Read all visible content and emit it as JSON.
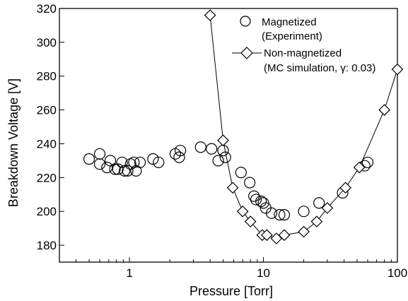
{
  "chart_data": {
    "type": "scatter",
    "title": "",
    "xlabel": "Pressure [Torr]",
    "ylabel": "Breakdown Voltage [V]",
    "x_scale": "log",
    "xlim": [
      0.3,
      100
    ],
    "ylim": [
      170,
      320
    ],
    "x_ticks": [
      {
        "value": 1,
        "label": "1"
      },
      {
        "value": 10,
        "label": "10"
      },
      {
        "value": 100,
        "label": "100"
      }
    ],
    "y_ticks": [
      180,
      200,
      220,
      240,
      260,
      280,
      300,
      320
    ],
    "grid": false,
    "legend_position": "top-right",
    "series": [
      {
        "name": "Magnetized",
        "name_note": "(Experiment)",
        "marker": "circle",
        "line": false,
        "points": [
          [
            0.5,
            231
          ],
          [
            0.6,
            234
          ],
          [
            0.6,
            228
          ],
          [
            0.68,
            226
          ],
          [
            0.72,
            230
          ],
          [
            0.78,
            225
          ],
          [
            0.82,
            225
          ],
          [
            0.88,
            229
          ],
          [
            0.92,
            224
          ],
          [
            0.97,
            224
          ],
          [
            1.02,
            228
          ],
          [
            1.08,
            229
          ],
          [
            1.12,
            224
          ],
          [
            1.2,
            229
          ],
          [
            1.5,
            231
          ],
          [
            1.65,
            229
          ],
          [
            2.2,
            234
          ],
          [
            2.35,
            232
          ],
          [
            2.4,
            236
          ],
          [
            3.4,
            238
          ],
          [
            4.1,
            237
          ],
          [
            4.6,
            230
          ],
          [
            5.0,
            236
          ],
          [
            5.2,
            232
          ],
          [
            6.8,
            223
          ],
          [
            7.9,
            217
          ],
          [
            8.5,
            209
          ],
          [
            8.8,
            207
          ],
          [
            9.6,
            206
          ],
          [
            10.0,
            205
          ],
          [
            10.4,
            202
          ],
          [
            11.5,
            199
          ],
          [
            13.2,
            198
          ],
          [
            14.3,
            198
          ],
          [
            20,
            200
          ],
          [
            26,
            205
          ],
          [
            39,
            211
          ],
          [
            57,
            227
          ],
          [
            60,
            229
          ]
        ]
      },
      {
        "name": "Non-magnetized",
        "name_note": "(MC simulation, γ: 0.03)",
        "marker": "diamond",
        "line": true,
        "points": [
          [
            4.0,
            316
          ],
          [
            5.0,
            242
          ],
          [
            5.9,
            214
          ],
          [
            7.0,
            200
          ],
          [
            8.0,
            194
          ],
          [
            9.8,
            186
          ],
          [
            10.6,
            186
          ],
          [
            12.5,
            184
          ],
          [
            14.3,
            186
          ],
          [
            20,
            188
          ],
          [
            25,
            194
          ],
          [
            30,
            202
          ],
          [
            41,
            214
          ],
          [
            52,
            226
          ],
          [
            80,
            260
          ],
          [
            100,
            284
          ]
        ]
      }
    ]
  }
}
